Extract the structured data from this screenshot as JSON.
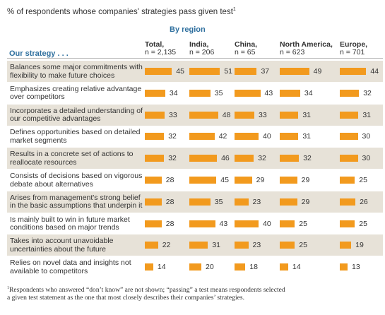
{
  "title": "% of respondents whose companies' strategies pass given test",
  "title_footnote_mark": "1",
  "region_header": "By region",
  "strategy_header": "Our strategy . . .",
  "bar_color": "#f29a1e",
  "shade_color": "#e7e2d8",
  "accent_color": "#2e6f9e",
  "footnote_mark": "1",
  "footnote": "Respondents who answered “don’t know” are not shown; “passing” a test means respondents selected a given test statement as the one that most closely describes their companies’ strategies.",
  "chart_data": {
    "type": "bar",
    "title": "% of respondents whose companies' strategies pass given test",
    "columns": [
      {
        "name": "Total,",
        "n": "n = 2,135"
      },
      {
        "name": "India,",
        "n": "n = 206"
      },
      {
        "name": "China,",
        "n": "n = 65"
      },
      {
        "name": "North America,",
        "n": "n = 623"
      },
      {
        "name": "Europe,",
        "n": "n = 701"
      }
    ],
    "categories": [
      "Balances some major commitments with flexibility to make future choices",
      "Emphasizes creating relative advantage over competitors",
      "Incorporates a detailed understanding of our competitive advantages",
      "Defines opportunities based on detailed market segments",
      "Results in a concrete set of actions to reallocate resources",
      "Consists of decisions based on vigorous debate about alternatives",
      "Arises from management's strong belief in the basic assumptions that underpin it",
      "Is mainly built to win in future market conditions based on major trends",
      "Takes into account unavoidable uncertainties about the future",
      "Relies on novel data and insights not available to competitors"
    ],
    "series": [
      {
        "name": "Total",
        "values": [
          45,
          34,
          33,
          32,
          32,
          28,
          28,
          28,
          22,
          14
        ]
      },
      {
        "name": "India",
        "values": [
          51,
          35,
          48,
          42,
          46,
          45,
          35,
          43,
          31,
          20
        ]
      },
      {
        "name": "China",
        "values": [
          37,
          43,
          33,
          40,
          32,
          29,
          23,
          40,
          23,
          18
        ]
      },
      {
        "name": "North America",
        "values": [
          49,
          34,
          31,
          31,
          32,
          29,
          29,
          25,
          25,
          14
        ]
      },
      {
        "name": "Europe",
        "values": [
          44,
          32,
          31,
          30,
          30,
          25,
          26,
          25,
          19,
          13
        ]
      }
    ],
    "grid": false
  }
}
